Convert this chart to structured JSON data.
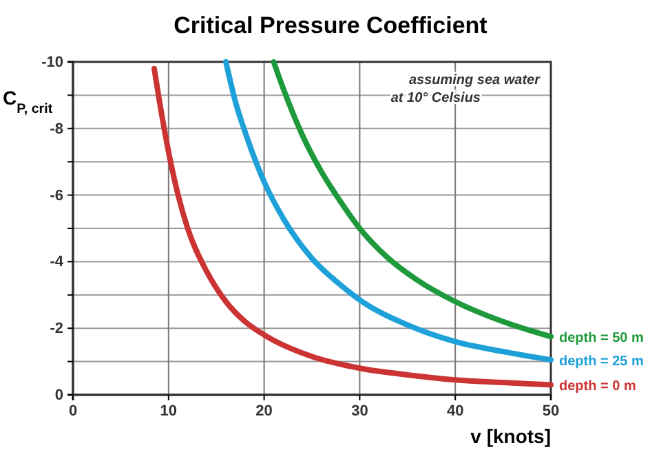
{
  "chart_data": {
    "type": "line",
    "title": "Critical Pressure Coefficient",
    "xlabel": "v [knots]",
    "ylabel": "C$_{P, crit}$",
    "annotations": [
      "assuming sea water\nat 10° Celsius"
    ],
    "xlim": [
      0,
      50
    ],
    "xticks": [
      0,
      10,
      20,
      30,
      40,
      50
    ],
    "ylim": [
      0,
      -10
    ],
    "yticks": [
      0,
      {
        "value": -1,
        "label": null
      },
      -2,
      {
        "value": -3,
        "label": null
      },
      -4,
      {
        "value": -5,
        "label": null
      },
      -6,
      {
        "value": -7,
        "label": null
      },
      -8,
      {
        "value": -9,
        "label": null
      },
      -10
    ],
    "grid": true,
    "marker": "none",
    "line_style": "solid",
    "series": [
      {
        "name": "depth = 50 m",
        "color": "#1e9a3c",
        "x": [
          21,
          22,
          24,
          26,
          28,
          30,
          33,
          36,
          40,
          45,
          50
        ],
        "values": [
          -10,
          -9.2,
          -7.8,
          -6.7,
          -5.8,
          -5.0,
          -4.1,
          -3.45,
          -2.8,
          -2.2,
          -1.75
        ]
      },
      {
        "name": "depth = 25 m",
        "color": "#1ea0d8",
        "x": [
          16,
          17,
          18,
          20,
          22,
          25,
          28,
          30,
          35,
          40,
          45,
          50
        ],
        "values": [
          -10,
          -8.8,
          -7.9,
          -6.4,
          -5.3,
          -4.1,
          -3.3,
          -2.85,
          -2.1,
          -1.6,
          -1.3,
          -1.05
        ]
      },
      {
        "name": "depth = 0 m",
        "color": "#cc3333",
        "x": [
          8.5,
          9,
          10,
          11,
          12,
          14,
          16,
          18,
          20,
          25,
          30,
          35,
          40,
          45,
          50
        ],
        "values": [
          -9.8,
          -8.9,
          -7.3,
          -6.0,
          -5.0,
          -3.7,
          -2.8,
          -2.2,
          -1.8,
          -1.15,
          -0.8,
          -0.6,
          -0.45,
          -0.37,
          -0.3
        ]
      }
    ]
  }
}
